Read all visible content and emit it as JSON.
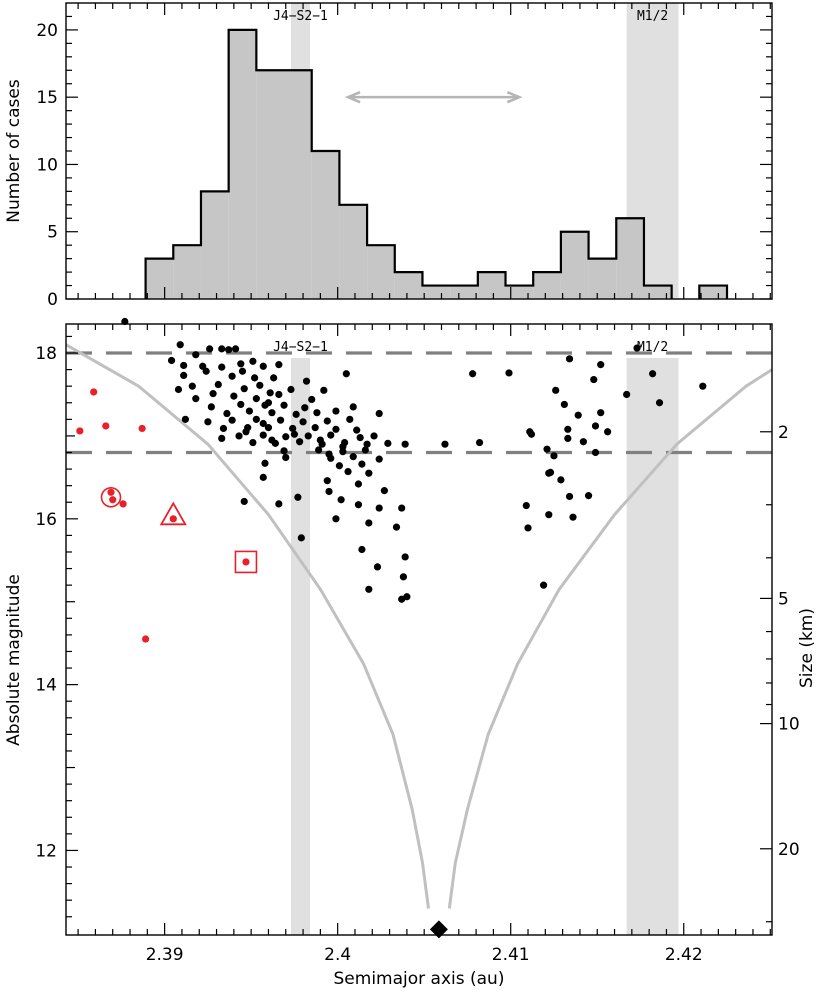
{
  "chart_data": [
    {
      "type": "histogram",
      "ylabel": "Number of cases",
      "ylim": [
        0,
        22
      ],
      "yticks": [
        0,
        5,
        10,
        15,
        20
      ],
      "xlim": [
        2.3843,
        2.4251
      ],
      "bin_width": 0.0016,
      "bins": [
        {
          "x0": 2.3889,
          "count": 3
        },
        {
          "x0": 2.3905,
          "count": 4
        },
        {
          "x0": 2.3921,
          "count": 8
        },
        {
          "x0": 2.3937,
          "count": 20
        },
        {
          "x0": 2.3953,
          "count": 17
        },
        {
          "x0": 2.3969,
          "count": 17
        },
        {
          "x0": 2.3985,
          "count": 11
        },
        {
          "x0": 2.4001,
          "count": 7
        },
        {
          "x0": 2.4017,
          "count": 4
        },
        {
          "x0": 2.4033,
          "count": 2
        },
        {
          "x0": 2.4049,
          "count": 1
        },
        {
          "x0": 2.4065,
          "count": 1
        },
        {
          "x0": 2.4081,
          "count": 2
        },
        {
          "x0": 2.4097,
          "count": 1
        },
        {
          "x0": 2.4113,
          "count": 2
        },
        {
          "x0": 2.4129,
          "count": 5
        },
        {
          "x0": 2.4145,
          "count": 3
        },
        {
          "x0": 2.4161,
          "count": 6
        },
        {
          "x0": 2.4177,
          "count": 1
        },
        {
          "x0": 2.4209,
          "count": 1
        }
      ],
      "bands": [
        {
          "label": "J4−S2−1",
          "x0": 2.3973,
          "x1": 2.3984
        },
        {
          "label": "M1/2",
          "x0": 2.4167,
          "x1": 2.4197
        }
      ],
      "arrow": {
        "x0": 2.4006,
        "x1": 2.4105,
        "y": 15
      },
      "bar_color": "#c6c6c6",
      "band_color": "#e0e0e0"
    },
    {
      "type": "scatter",
      "xlabel": "Semimajor axis (au)",
      "ylabel": "Absolute magnitude",
      "y2label": "Size (km)",
      "xlim": [
        2.3843,
        2.4251
      ],
      "ylim": [
        10.98,
        18.35
      ],
      "xticks": [
        2.39,
        2.4,
        2.41,
        2.42
      ],
      "xtick_labels": [
        "2.39",
        "2.4",
        "2.41",
        "2.42"
      ],
      "yticks": [
        12,
        14,
        16,
        18
      ],
      "y2ticks": [
        {
          "label": "2",
          "H": 17.05
        },
        {
          "label": "5",
          "H": 15.04
        },
        {
          "label": "10",
          "H": 13.53
        },
        {
          "label": "20",
          "H": 12.02
        }
      ],
      "hlines": [
        18.0,
        16.8
      ],
      "bands": [
        {
          "label": "J4−S2−1",
          "x0": 2.3973,
          "x1": 2.3984
        },
        {
          "label": "M1/2",
          "x0": 2.4167,
          "x1": 2.4197
        }
      ],
      "envelope_center": 2.40585,
      "yarkovsky_curve_left": [
        [
          2.3843,
          18.1
        ],
        [
          2.3885,
          17.6
        ],
        [
          2.3925,
          16.9
        ],
        [
          2.396,
          16.05
        ],
        [
          2.399,
          15.15
        ],
        [
          2.4015,
          14.25
        ],
        [
          2.4032,
          13.4
        ],
        [
          2.4043,
          12.5
        ],
        [
          2.4049,
          11.85
        ],
        [
          2.40525,
          11.3
        ]
      ],
      "yarkovsky_curve_right": [
        [
          2.40645,
          11.3
        ],
        [
          2.4068,
          11.85
        ],
        [
          2.4075,
          12.5
        ],
        [
          2.4087,
          13.4
        ],
        [
          2.4104,
          14.25
        ],
        [
          2.4128,
          15.15
        ],
        [
          2.416,
          16.05
        ],
        [
          2.4196,
          16.9
        ],
        [
          2.4236,
          17.6
        ],
        [
          2.4251,
          17.8
        ]
      ],
      "parent_marker": {
        "x": 2.40585,
        "H": 11.0
      },
      "family_points": [
        [
          2.3877,
          18.38
        ],
        [
          2.3909,
          18.1
        ],
        [
          2.3926,
          18.05
        ],
        [
          2.3933,
          18.05
        ],
        [
          2.3937,
          18.04
        ],
        [
          2.3941,
          18.05
        ],
        [
          2.3918,
          17.98
        ],
        [
          2.3904,
          17.91
        ],
        [
          2.3911,
          17.85
        ],
        [
          2.3922,
          17.84
        ],
        [
          2.3933,
          17.83
        ],
        [
          2.3944,
          17.87
        ],
        [
          2.3951,
          17.9
        ],
        [
          2.3957,
          17.84
        ],
        [
          2.3924,
          17.78
        ],
        [
          2.3945,
          17.78
        ],
        [
          2.3966,
          17.86
        ],
        [
          2.3911,
          17.73
        ],
        [
          2.3939,
          17.72
        ],
        [
          2.3952,
          17.7
        ],
        [
          2.3963,
          17.7
        ],
        [
          2.3916,
          17.6
        ],
        [
          2.3931,
          17.62
        ],
        [
          2.3955,
          17.61
        ],
        [
          2.3982,
          17.66
        ],
        [
          2.3908,
          17.56
        ],
        [
          2.3928,
          17.51
        ],
        [
          2.3946,
          17.57
        ],
        [
          2.3961,
          17.52
        ],
        [
          2.3973,
          17.56
        ],
        [
          2.3992,
          17.55
        ],
        [
          2.3918,
          17.45
        ],
        [
          2.394,
          17.48
        ],
        [
          2.3953,
          17.45
        ],
        [
          2.3966,
          17.5
        ],
        [
          2.3985,
          17.44
        ],
        [
          2.3927,
          17.35
        ],
        [
          2.3944,
          17.38
        ],
        [
          2.3958,
          17.37
        ],
        [
          2.3969,
          17.37
        ],
        [
          2.3981,
          17.34
        ],
        [
          2.4009,
          17.35
        ],
        [
          2.3936,
          17.27
        ],
        [
          2.3949,
          17.3
        ],
        [
          2.3962,
          17.28
        ],
        [
          2.3976,
          17.26
        ],
        [
          2.3988,
          17.28
        ],
        [
          2.3999,
          17.3
        ],
        [
          2.3912,
          17.2
        ],
        [
          2.3925,
          17.17
        ],
        [
          2.3939,
          17.19
        ],
        [
          2.3953,
          17.2
        ],
        [
          2.3967,
          17.19
        ],
        [
          2.398,
          17.17
        ],
        [
          2.3994,
          17.18
        ],
        [
          2.4007,
          17.2
        ],
        [
          2.3934,
          17.09
        ],
        [
          2.3948,
          17.1
        ],
        [
          2.396,
          17.1
        ],
        [
          2.3974,
          17.09
        ],
        [
          2.3987,
          17.1
        ],
        [
          2.3999,
          17.08
        ],
        [
          2.4011,
          17.07
        ],
        [
          2.3943,
          17.0
        ],
        [
          2.3957,
          17.01
        ],
        [
          2.397,
          16.99
        ],
        [
          2.3983,
          17.0
        ],
        [
          2.3996,
          17.01
        ],
        [
          2.4013,
          16.98
        ],
        [
          2.4021,
          17.0
        ],
        [
          2.3951,
          16.92
        ],
        [
          2.3964,
          16.91
        ],
        [
          2.3978,
          16.93
        ],
        [
          2.3991,
          16.9
        ],
        [
          2.4004,
          16.92
        ],
        [
          2.4017,
          16.9
        ],
        [
          2.4029,
          16.91
        ],
        [
          2.3969,
          16.82
        ],
        [
          2.3989,
          16.83
        ],
        [
          2.4003,
          16.81
        ],
        [
          2.4016,
          16.83
        ],
        [
          2.397,
          16.74
        ],
        [
          2.3996,
          16.73
        ],
        [
          2.4009,
          16.75
        ],
        [
          2.4024,
          16.72
        ],
        [
          2.3958,
          16.67
        ],
        [
          2.4001,
          16.64
        ],
        [
          2.4014,
          16.66
        ],
        [
          2.4006,
          16.57
        ],
        [
          2.4018,
          16.55
        ],
        [
          2.3957,
          16.5
        ],
        [
          2.3994,
          16.46
        ],
        [
          2.4012,
          16.42
        ],
        [
          2.3995,
          16.33
        ],
        [
          2.4027,
          16.34
        ],
        [
          2.4002,
          16.23
        ],
        [
          2.3977,
          16.26
        ],
        [
          2.3946,
          16.21
        ],
        [
          2.3966,
          16.18
        ],
        [
          2.4012,
          16.17
        ],
        [
          2.4024,
          16.13
        ],
        [
          2.4037,
          16.13
        ],
        [
          2.3999,
          16.0
        ],
        [
          2.4018,
          15.95
        ],
        [
          2.4034,
          15.9
        ],
        [
          2.3979,
          15.77
        ],
        [
          2.4014,
          15.63
        ],
        [
          2.4039,
          15.54
        ],
        [
          2.4023,
          15.42
        ],
        [
          2.4038,
          15.3
        ],
        [
          2.4018,
          15.15
        ],
        [
          2.404,
          15.06
        ],
        [
          2.4037,
          15.03
        ],
        [
          2.4005,
          17.75
        ],
        [
          2.4078,
          17.75
        ],
        [
          2.4099,
          17.76
        ],
        [
          2.3957,
          17.15
        ],
        [
          2.3947,
          17.05
        ],
        [
          2.3933,
          16.97
        ],
        [
          2.3962,
          16.95
        ],
        [
          2.4039,
          16.9
        ],
        [
          2.4062,
          16.9
        ],
        [
          2.4082,
          16.92
        ],
        [
          2.4024,
          17.27
        ],
        [
          2.399,
          16.95
        ],
        [
          2.4003,
          16.87
        ],
        [
          2.3975,
          17.02
        ],
        [
          2.3995,
          16.78
        ],
        [
          2.396,
          17.4
        ],
        [
          2.4134,
          17.93
        ],
        [
          2.4152,
          17.86
        ],
        [
          2.4173,
          18.06
        ],
        [
          2.4182,
          17.75
        ],
        [
          2.4186,
          17.4
        ],
        [
          2.4211,
          17.6
        ],
        [
          2.4148,
          17.68
        ],
        [
          2.4167,
          17.5
        ],
        [
          2.4126,
          17.55
        ],
        [
          2.4131,
          17.38
        ],
        [
          2.4139,
          17.25
        ],
        [
          2.4133,
          17.08
        ],
        [
          2.4149,
          17.12
        ],
        [
          2.4152,
          17.28
        ],
        [
          2.4156,
          17.05
        ],
        [
          2.4142,
          16.93
        ],
        [
          2.4133,
          16.97
        ],
        [
          2.4111,
          17.05
        ],
        [
          2.4112,
          17.02
        ],
        [
          2.4121,
          16.84
        ],
        [
          2.4125,
          16.76
        ],
        [
          2.4149,
          16.8
        ],
        [
          2.4122,
          16.55
        ],
        [
          2.4123,
          16.56
        ],
        [
          2.4129,
          16.47
        ],
        [
          2.4134,
          16.27
        ],
        [
          2.4145,
          16.28
        ],
        [
          2.4109,
          16.16
        ],
        [
          2.4122,
          16.05
        ],
        [
          2.4136,
          16.02
        ],
        [
          2.411,
          15.89
        ],
        [
          2.4119,
          15.2
        ]
      ],
      "red_points": [
        [
          2.3851,
          17.06
        ],
        [
          2.3859,
          17.53
        ],
        [
          2.3866,
          17.12
        ],
        [
          2.3887,
          17.09
        ],
        [
          2.3869,
          16.32
        ],
        [
          2.387,
          16.23
        ],
        [
          2.3876,
          16.18
        ],
        [
          2.3905,
          16.0
        ],
        [
          2.3947,
          15.48
        ],
        [
          2.3889,
          14.55
        ]
      ],
      "red_markers": [
        {
          "shape": "circle",
          "x": 2.3869,
          "H": 16.26
        },
        {
          "shape": "triangle",
          "x": 2.3905,
          "H": 16.03
        },
        {
          "shape": "square",
          "x": 2.3947,
          "H": 15.48
        }
      ]
    }
  ]
}
